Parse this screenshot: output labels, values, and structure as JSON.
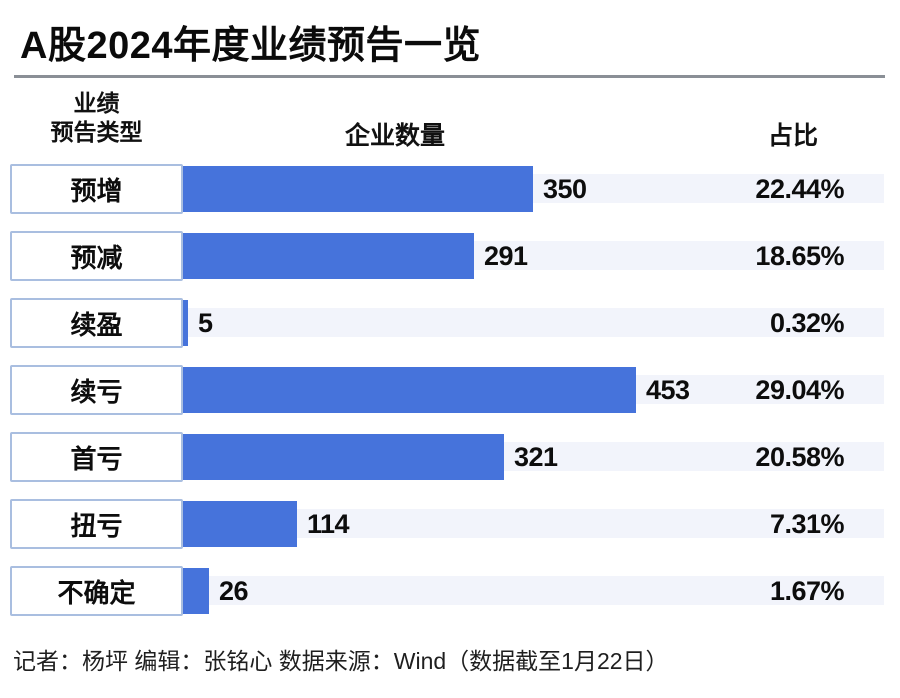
{
  "title": "A股2024年度业绩预告一览",
  "table": {
    "type_header_line1": "业绩",
    "type_header_line2": "预告类型",
    "count_header": "企业数量",
    "pct_header": "占比",
    "rows": [
      {
        "label": "预增",
        "count": 350,
        "pct": "22.44%"
      },
      {
        "label": "预减",
        "count": 291,
        "pct": "18.65%"
      },
      {
        "label": "续盈",
        "count": 5,
        "pct": "0.32%"
      },
      {
        "label": "续亏",
        "count": 453,
        "pct": "29.04%"
      },
      {
        "label": "首亏",
        "count": 321,
        "pct": "20.58%"
      },
      {
        "label": "扭亏",
        "count": 114,
        "pct": "7.31%"
      },
      {
        "label": "不确定",
        "count": 26,
        "pct": "1.67%"
      }
    ]
  },
  "footer": "记者：杨坪 编辑：张铭心  数据来源：Wind（数据截至1月22日）",
  "colors": {
    "bar": "#4673db",
    "track": "#f2f4fb",
    "label_box_border": "#a9bee0",
    "divider": "#8a8f96",
    "text": "#0b0b0b"
  },
  "chart_data": {
    "type": "bar",
    "title": "A股2024年度业绩预告一览",
    "categories": [
      "预增",
      "预减",
      "续盈",
      "续亏",
      "首亏",
      "扭亏",
      "不确定"
    ],
    "series": [
      {
        "name": "企业数量",
        "values": [
          350,
          291,
          5,
          453,
          321,
          114,
          26
        ]
      },
      {
        "name": "占比",
        "values": [
          "22.44%",
          "18.65%",
          "0.32%",
          "29.04%",
          "20.58%",
          "7.31%",
          "1.67%"
        ]
      }
    ],
    "xlabel": "企业数量",
    "ylabel": "业绩预告类型",
    "xlim": [
      0,
      453
    ],
    "grid": false,
    "legend_position": "none",
    "orientation": "horizontal",
    "source_note": "记者：杨坪 编辑：张铭心  数据来源：Wind（数据截至1月22日）"
  }
}
